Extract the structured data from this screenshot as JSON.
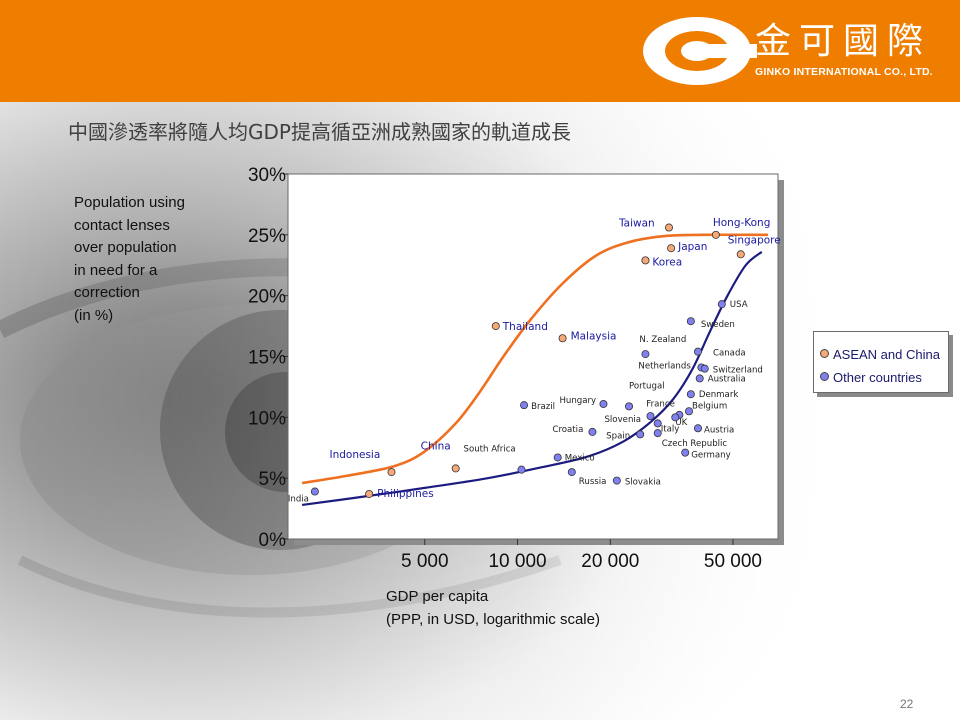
{
  "page": {
    "title": "中國滲透率將隨人均GDP提高循亞洲成熟國家的軌道成長",
    "number": "22"
  },
  "brand": {
    "name_cn": "金可國際",
    "name_en": "GINKO INTERNATIONAL CO., LTD.",
    "color": "#ef7d00"
  },
  "chart_data": {
    "type": "scatter",
    "ylabel": "Population using\ncontact lenses\nover population\nin need for a\ncorrection\n(in %)",
    "xlabel": "GDP per capita\n(PPP, in USD, logarithmic scale)",
    "x_scale": "log",
    "xlim": [
      1800,
      70000
    ],
    "ylim": [
      0,
      30
    ],
    "x_ticks": [
      5000,
      10000,
      20000,
      50000
    ],
    "x_tick_labels": [
      "5 000",
      "10 000",
      "20 000",
      "50 000"
    ],
    "y_ticks": [
      0,
      5,
      10,
      15,
      20,
      25,
      30
    ],
    "y_tick_labels": [
      "0%",
      "5%",
      "10%",
      "15%",
      "20%",
      "25%",
      "30%"
    ],
    "legend_position": "right",
    "grid": false,
    "series": [
      {
        "name": "ASEAN and China",
        "color": "#f5a878",
        "curve_color": "#ef7020",
        "points": [
          {
            "label": "Indonesia",
            "x": 3900,
            "y": 5.5
          },
          {
            "label": "Philippines",
            "x": 3300,
            "y": 3.7
          },
          {
            "label": "China",
            "x": 6300,
            "y": 5.8
          },
          {
            "label": "Thailand",
            "x": 8500,
            "y": 17.5
          },
          {
            "label": "Malaysia",
            "x": 14000,
            "y": 16.5
          },
          {
            "label": "Taiwan",
            "x": 31000,
            "y": 25.6
          },
          {
            "label": "Hong-Kong",
            "x": 44000,
            "y": 25.0
          },
          {
            "label": "Japan",
            "x": 31500,
            "y": 23.9
          },
          {
            "label": "Singapore",
            "x": 53000,
            "y": 23.4
          },
          {
            "label": "Korea",
            "x": 26000,
            "y": 22.9
          }
        ],
        "trend": [
          [
            2000,
            4.6
          ],
          [
            2800,
            5.2
          ],
          [
            4000,
            6.0
          ],
          [
            5000,
            7.2
          ],
          [
            6300,
            9.5
          ],
          [
            7500,
            12.0
          ],
          [
            9000,
            15.0
          ],
          [
            11000,
            18.0
          ],
          [
            14000,
            21.0
          ],
          [
            18000,
            23.3
          ],
          [
            23000,
            24.4
          ],
          [
            30000,
            24.9
          ],
          [
            40000,
            25.0
          ],
          [
            55000,
            25.0
          ],
          [
            65000,
            25.0
          ]
        ]
      },
      {
        "name": "Other countries",
        "color": "#8080f0",
        "curve_color": "#1c1c80",
        "points": [
          {
            "label": "India",
            "x": 2200,
            "y": 3.9
          },
          {
            "label": "Brazil",
            "x": 10500,
            "y": 11.0
          },
          {
            "label": "South Africa",
            "x": 10300,
            "y": 5.7
          },
          {
            "label": "Hungary",
            "x": 19000,
            "y": 11.1
          },
          {
            "label": "Mexico",
            "x": 13500,
            "y": 6.7
          },
          {
            "label": "Russia",
            "x": 15000,
            "y": 5.5
          },
          {
            "label": "Croatia",
            "x": 17500,
            "y": 8.8
          },
          {
            "label": "Slovakia",
            "x": 21000,
            "y": 4.8
          },
          {
            "label": "Portugal",
            "x": 23000,
            "y": 10.9
          },
          {
            "label": "Spain",
            "x": 25000,
            "y": 8.6
          },
          {
            "label": "Slovenia",
            "x": 27000,
            "y": 10.1
          },
          {
            "label": "Italy",
            "x": 28500,
            "y": 9.5
          },
          {
            "label": "UK",
            "x": 33500,
            "y": 10.2
          },
          {
            "label": "France",
            "x": 32500,
            "y": 10.0
          },
          {
            "label": "Czech Republic",
            "x": 28500,
            "y": 8.7
          },
          {
            "label": "Germany",
            "x": 35000,
            "y": 7.1
          },
          {
            "label": "Belgium",
            "x": 36000,
            "y": 10.5
          },
          {
            "label": "Austria",
            "x": 38500,
            "y": 9.1
          },
          {
            "label": "Denmark",
            "x": 36500,
            "y": 11.9
          },
          {
            "label": "N. Zealand",
            "x": 26000,
            "y": 15.2
          },
          {
            "label": "Netherlands",
            "x": 39500,
            "y": 14.1
          },
          {
            "label": "Sweden",
            "x": 36500,
            "y": 17.9
          },
          {
            "label": "Canada",
            "x": 38500,
            "y": 15.4
          },
          {
            "label": "Switzerland",
            "x": 40500,
            "y": 14.0
          },
          {
            "label": "Australia",
            "x": 39000,
            "y": 13.2
          },
          {
            "label": "USA",
            "x": 46000,
            "y": 19.3
          }
        ],
        "trend": [
          [
            2000,
            2.8
          ],
          [
            3000,
            3.4
          ],
          [
            5000,
            4.2
          ],
          [
            8000,
            5.0
          ],
          [
            12000,
            5.9
          ],
          [
            17000,
            6.8
          ],
          [
            22000,
            8.0
          ],
          [
            27000,
            9.6
          ],
          [
            32000,
            11.5
          ],
          [
            37000,
            14.0
          ],
          [
            42000,
            17.0
          ],
          [
            48000,
            20.0
          ],
          [
            55000,
            22.5
          ],
          [
            62000,
            23.6
          ]
        ]
      }
    ]
  }
}
